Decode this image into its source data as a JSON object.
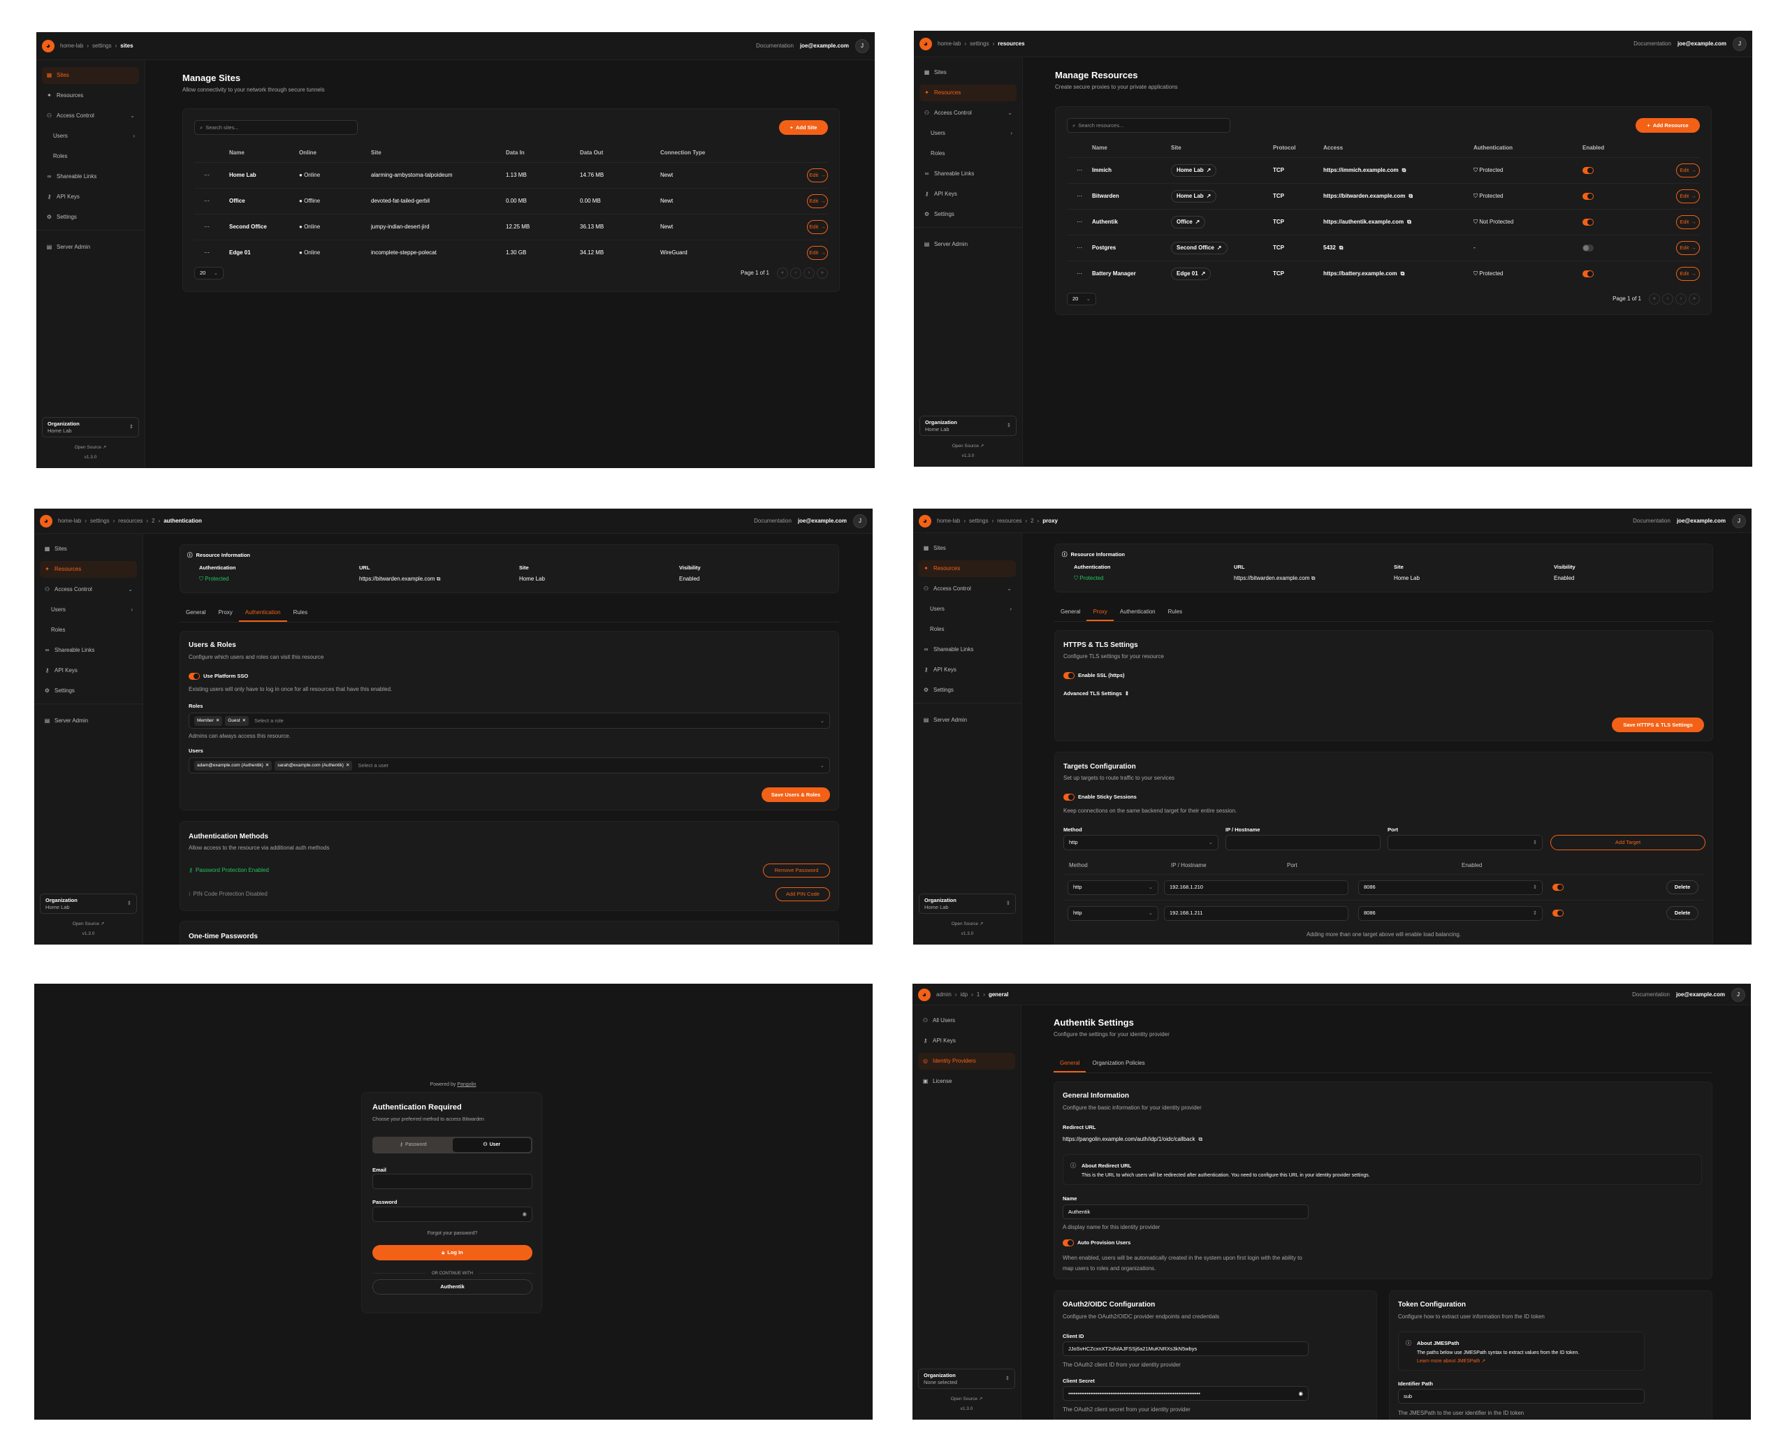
{
  "common": {
    "documentation": "Documentation",
    "user": "joe@example.com",
    "avatar": "J",
    "open_source": "Open Source",
    "version": "v1.3.0",
    "org_label": "Organization",
    "brand_color": "#f36117",
    "success_color": "#22c55e",
    "warning_color": "#eab308",
    "edit_label": "Edit",
    "page_size": "20",
    "page_info": "Page 1 of 1"
  },
  "org_sidebar": [
    {
      "label": "Sites",
      "icon": "sites-icon"
    },
    {
      "label": "Resources",
      "icon": "resources-icon"
    },
    {
      "label": "Access Control",
      "icon": "users-icon",
      "chevron": "down"
    },
    {
      "label": "Users",
      "sub": true,
      "chevron": "right"
    },
    {
      "label": "Roles",
      "sub": true
    },
    {
      "label": "Shareable Links",
      "icon": "link-icon"
    },
    {
      "label": "API Keys",
      "icon": "key-icon"
    },
    {
      "label": "Settings",
      "icon": "settings-icon"
    },
    {
      "label": "Server Admin",
      "icon": "server-icon",
      "divider_before": true
    }
  ],
  "admin_sidebar": [
    {
      "label": "All Users",
      "icon": "users-icon"
    },
    {
      "label": "API Keys",
      "icon": "key-icon"
    },
    {
      "label": "Identity Providers",
      "icon": "fingerprint-icon"
    },
    {
      "label": "License",
      "icon": "license-icon"
    }
  ],
  "sites": {
    "breadcrumb": [
      "home-lab",
      "settings",
      "sites"
    ],
    "active": "Sites",
    "org_value": "Home Lab",
    "title": "Manage Sites",
    "subtitle": "Allow connectivity to your network through secure tunnels",
    "search_placeholder": "Search sites...",
    "add_label": "Add Site",
    "columns": [
      "Name",
      "Online",
      "Site",
      "Data In",
      "Data Out",
      "Connection Type"
    ],
    "rows": [
      {
        "name": "Home Lab",
        "online": "Online",
        "status": "online",
        "site": "alarming-ambystoma-talpoideum",
        "data_in": "1.13 MB",
        "data_out": "14.76 MB",
        "connection": "Newt"
      },
      {
        "name": "Office",
        "online": "Offline",
        "status": "offline",
        "site": "devoted-fat-tailed-gerbil",
        "data_in": "0.00 MB",
        "data_out": "0.00 MB",
        "connection": "Newt"
      },
      {
        "name": "Second Office",
        "online": "Online",
        "status": "online",
        "site": "jumpy-indian-desert-jird",
        "data_in": "12.25 MB",
        "data_out": "36.13 MB",
        "connection": "Newt"
      },
      {
        "name": "Edge 01",
        "online": "Online",
        "status": "online",
        "site": "incomplete-steppe-polecat",
        "data_in": "1.30 GB",
        "data_out": "34.12 MB",
        "connection": "WireGuard"
      }
    ]
  },
  "resources": {
    "breadcrumb": [
      "home-lab",
      "settings",
      "resources"
    ],
    "active": "Resources",
    "org_value": "Home Lab",
    "title": "Manage Resources",
    "subtitle": "Create secure proxies to your private applications",
    "search_placeholder": "Search resources...",
    "add_label": "Add Resource",
    "columns": [
      "Name",
      "Site",
      "Protocol",
      "Access",
      "Authentication",
      "Enabled"
    ],
    "rows": [
      {
        "name": "Immich",
        "site": "Home Lab",
        "protocol": "TCP",
        "access": "https://immich.example.com",
        "auth": "Protected",
        "auth_state": "protected",
        "enabled": true
      },
      {
        "name": "Bitwarden",
        "site": "Home Lab",
        "protocol": "TCP",
        "access": "https://bitwarden.example.com",
        "auth": "Protected",
        "auth_state": "protected",
        "enabled": true
      },
      {
        "name": "Authentik",
        "site": "Office",
        "protocol": "TCP",
        "access": "https://authentik.example.com",
        "auth": "Not Protected",
        "auth_state": "not-protected",
        "enabled": true
      },
      {
        "name": "Postgres",
        "site": "Second Office",
        "protocol": "TCP",
        "access": "5432",
        "auth": "-",
        "auth_state": "none",
        "enabled": false
      },
      {
        "name": "Battery Manager",
        "site": "Edge 01",
        "protocol": "TCP",
        "access": "https://battery.example.com",
        "auth": "Protected",
        "auth_state": "protected",
        "enabled": true
      }
    ]
  },
  "resource_info": {
    "title": "Resource Information",
    "auth_label": "Authentication",
    "auth_value": "Protected",
    "url_label": "URL",
    "url_value": "https://bitwarden.example.com",
    "site_label": "Site",
    "site_value": "Home Lab",
    "visibility_label": "Visibility",
    "visibility_value": "Enabled"
  },
  "resource_tabs": [
    "General",
    "Proxy",
    "Authentication",
    "Rules"
  ],
  "auth_page": {
    "breadcrumb": [
      "home-lab",
      "settings",
      "resources",
      "2",
      "authentication"
    ],
    "active": "Resources",
    "org_value": "Home Lab",
    "active_tab": "Authentication",
    "users_roles": {
      "title": "Users & Roles",
      "subtitle": "Configure which users and roles can visit this resource",
      "sso_label": "Use Platform SSO",
      "sso_enabled": true,
      "sso_help": "Existing users will only have to log in once for all resources that have this enabled.",
      "roles_label": "Roles",
      "roles": [
        "Member",
        "Guest"
      ],
      "roles_placeholder": "Select a role",
      "roles_help": "Admins can always access this resource.",
      "users_label": "Users",
      "users": [
        "adam@example.com (Authentik)",
        "sarah@example.com (Authentik)"
      ],
      "users_placeholder": "Select a user",
      "save_label": "Save Users & Roles"
    },
    "methods": {
      "title": "Authentication Methods",
      "subtitle": "Allow access to the resource via additional auth methods",
      "password_status": "Password Protection Enabled",
      "remove_password": "Remove Password",
      "pin_status": "PIN Code Protection Disabled",
      "add_pin": "Add PIN Code"
    },
    "otp_title": "One-time Passwords"
  },
  "proxy_page": {
    "breadcrumb": [
      "home-lab",
      "settings",
      "resources",
      "2",
      "proxy"
    ],
    "active": "Resources",
    "org_value": "Home Lab",
    "active_tab": "Proxy",
    "tls": {
      "title": "HTTPS & TLS Settings",
      "subtitle": "Configure TLS settings for your resource",
      "ssl_label": "Enable SSL (https)",
      "ssl_enabled": true,
      "advanced_label": "Advanced TLS Settings",
      "save_label": "Save HTTPS & TLS Settings"
    },
    "targets": {
      "title": "Targets Configuration",
      "subtitle": "Set up targets to route traffic to your services",
      "sticky_label": "Enable Sticky Sessions",
      "sticky_enabled": true,
      "sticky_help": "Keep connections on the same backend target for their entire session.",
      "method_label": "Method",
      "ip_label": "IP / Hostname",
      "port_label": "Port",
      "method_value": "http",
      "add_label": "Add Target",
      "columns": [
        "Method",
        "IP / Hostname",
        "Port",
        "Enabled"
      ],
      "rows": [
        {
          "method": "http",
          "ip": "192.168.1.210",
          "port": "8086",
          "enabled": true
        },
        {
          "method": "http",
          "ip": "192.168.1.211",
          "port": "8086",
          "enabled": true
        }
      ],
      "delete_label": "Delete",
      "footer_note": "Adding more than one target above will enable load balancing."
    }
  },
  "login": {
    "powered_by": "Powered by",
    "powered_link": "Pangolin",
    "title": "Authentication Required",
    "subtitle": "Choose your preferred method to access Bitwarden",
    "tab_password": "Password",
    "tab_user": "User",
    "active_tab": "User",
    "email_label": "Email",
    "password_label": "Password",
    "forgot": "Forgot your password?",
    "login_label": "Log In",
    "divider": "OR CONTINUE WITH",
    "sso_label": "Authentik"
  },
  "idp_page": {
    "breadcrumb": [
      "admin",
      "idp",
      "1",
      "general"
    ],
    "active": "Identity Providers",
    "org_value": "None selected",
    "title": "Authentik Settings",
    "subtitle": "Configure the settings for your identity provider",
    "tabs": [
      "General",
      "Organization Policies"
    ],
    "active_tab": "General",
    "general": {
      "title": "General Information",
      "subtitle": "Configure the basic information for your identity provider",
      "redirect_label": "Redirect URL",
      "redirect_value": "https://pangolin.example.com/auth/idp/1/oidc/callback",
      "about_title": "About Redirect URL",
      "about_text": "This is the URL to which users will be redirected after authentication. You need to configure this URL in your identity provider settings.",
      "name_label": "Name",
      "name_value": "Authentik",
      "name_help": "A display name for this identity provider",
      "auto_label": "Auto Provision Users",
      "auto_enabled": true,
      "auto_help": "When enabled, users will be automatically created in the system upon first login with the ability to map users to roles and organizations."
    },
    "oauth": {
      "title": "OAuth2/OIDC Configuration",
      "subtitle": "Configure the OAuth2/OIDC provider endpoints and credentials",
      "client_id_label": "Client ID",
      "client_id_value": "JJoSvHCZcxnXT2sfolAJFSSj6a21MuKNRXs3kN5wbys",
      "client_id_help": "The OAuth2 client ID from your identity provider",
      "secret_label": "Client Secret",
      "secret_value": "••••••••••••••••••••••••••••••••••••••••••••••••••••••••••••••••••••••••",
      "secret_help": "The OAuth2 client secret from your identity provider"
    },
    "token": {
      "title": "Token Configuration",
      "subtitle": "Configure how to extract user information from the ID token",
      "about_title": "About JMESPath",
      "about_text": "The paths below use JMESPath syntax to extract values from the ID token.",
      "about_link": "Learn more about JMESPath",
      "identifier_label": "Identifier Path",
      "identifier_value": "sub",
      "identifier_help": "The JMESPath to the user identifier in the ID token"
    }
  }
}
